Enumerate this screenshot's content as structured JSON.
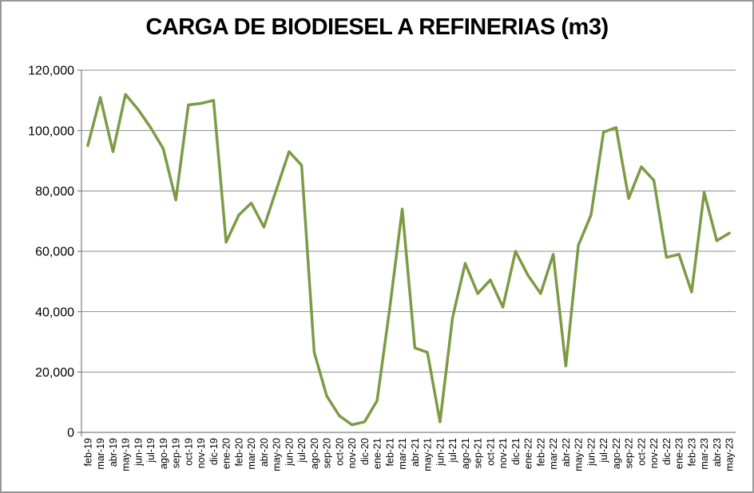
{
  "chart_data": {
    "type": "line",
    "title": "CARGA DE BIODIESEL A REFINERIAS (m3)",
    "categories": [
      "feb-19",
      "mar-19",
      "abr-19",
      "may-19",
      "jun-19",
      "jul-19",
      "ago-19",
      "sep-19",
      "oct-19",
      "nov-19",
      "dic-19",
      "ene-20",
      "feb-20",
      "mar-20",
      "abr-20",
      "may-20",
      "jun-20",
      "jul-20",
      "ago-20",
      "sep-20",
      "oct-20",
      "nov-20",
      "dic-20",
      "ene-21",
      "feb-21",
      "mar-21",
      "abr-21",
      "may-21",
      "jun-21",
      "jul-21",
      "ago-21",
      "sep-21",
      "oct-21",
      "nov-21",
      "dic-21",
      "ene-22",
      "feb-22",
      "mar-22",
      "abr-22",
      "may-22",
      "jun-22",
      "jul-22",
      "ago-22",
      "sep-22",
      "oct-22",
      "nov-22",
      "dic-22",
      "ene-23",
      "feb-23",
      "mar-23",
      "abr-23",
      "may-23"
    ],
    "values": [
      95000,
      111000,
      93000,
      112000,
      107000,
      101000,
      94000,
      77000,
      108500,
      109000,
      110000,
      63000,
      72000,
      76000,
      68000,
      80500,
      93000,
      88500,
      26500,
      12000,
      5500,
      2500,
      3500,
      10500,
      41000,
      74000,
      28000,
      26500,
      3500,
      38000,
      56000,
      46000,
      50500,
      41500,
      60000,
      52000,
      46000,
      59000,
      22000,
      62000,
      72000,
      99500,
      101000,
      77500,
      88000,
      83500,
      58000,
      59000,
      46500,
      79500,
      63500,
      66000
    ],
    "xlabel": "",
    "ylabel": "",
    "ylim": [
      0,
      120000
    ],
    "ytick_interval": 20000,
    "ytick_labels": [
      "0",
      "20,000",
      "40,000",
      "60,000",
      "80,000",
      "100,000",
      "120,000"
    ],
    "grid": true,
    "legend": false
  },
  "colors": {
    "line": "#7D9B45",
    "grid": "#8C8C8C",
    "axis": "#7F7F7F",
    "text": "#000000",
    "background": "#FFFFFF",
    "border": "#979797"
  }
}
